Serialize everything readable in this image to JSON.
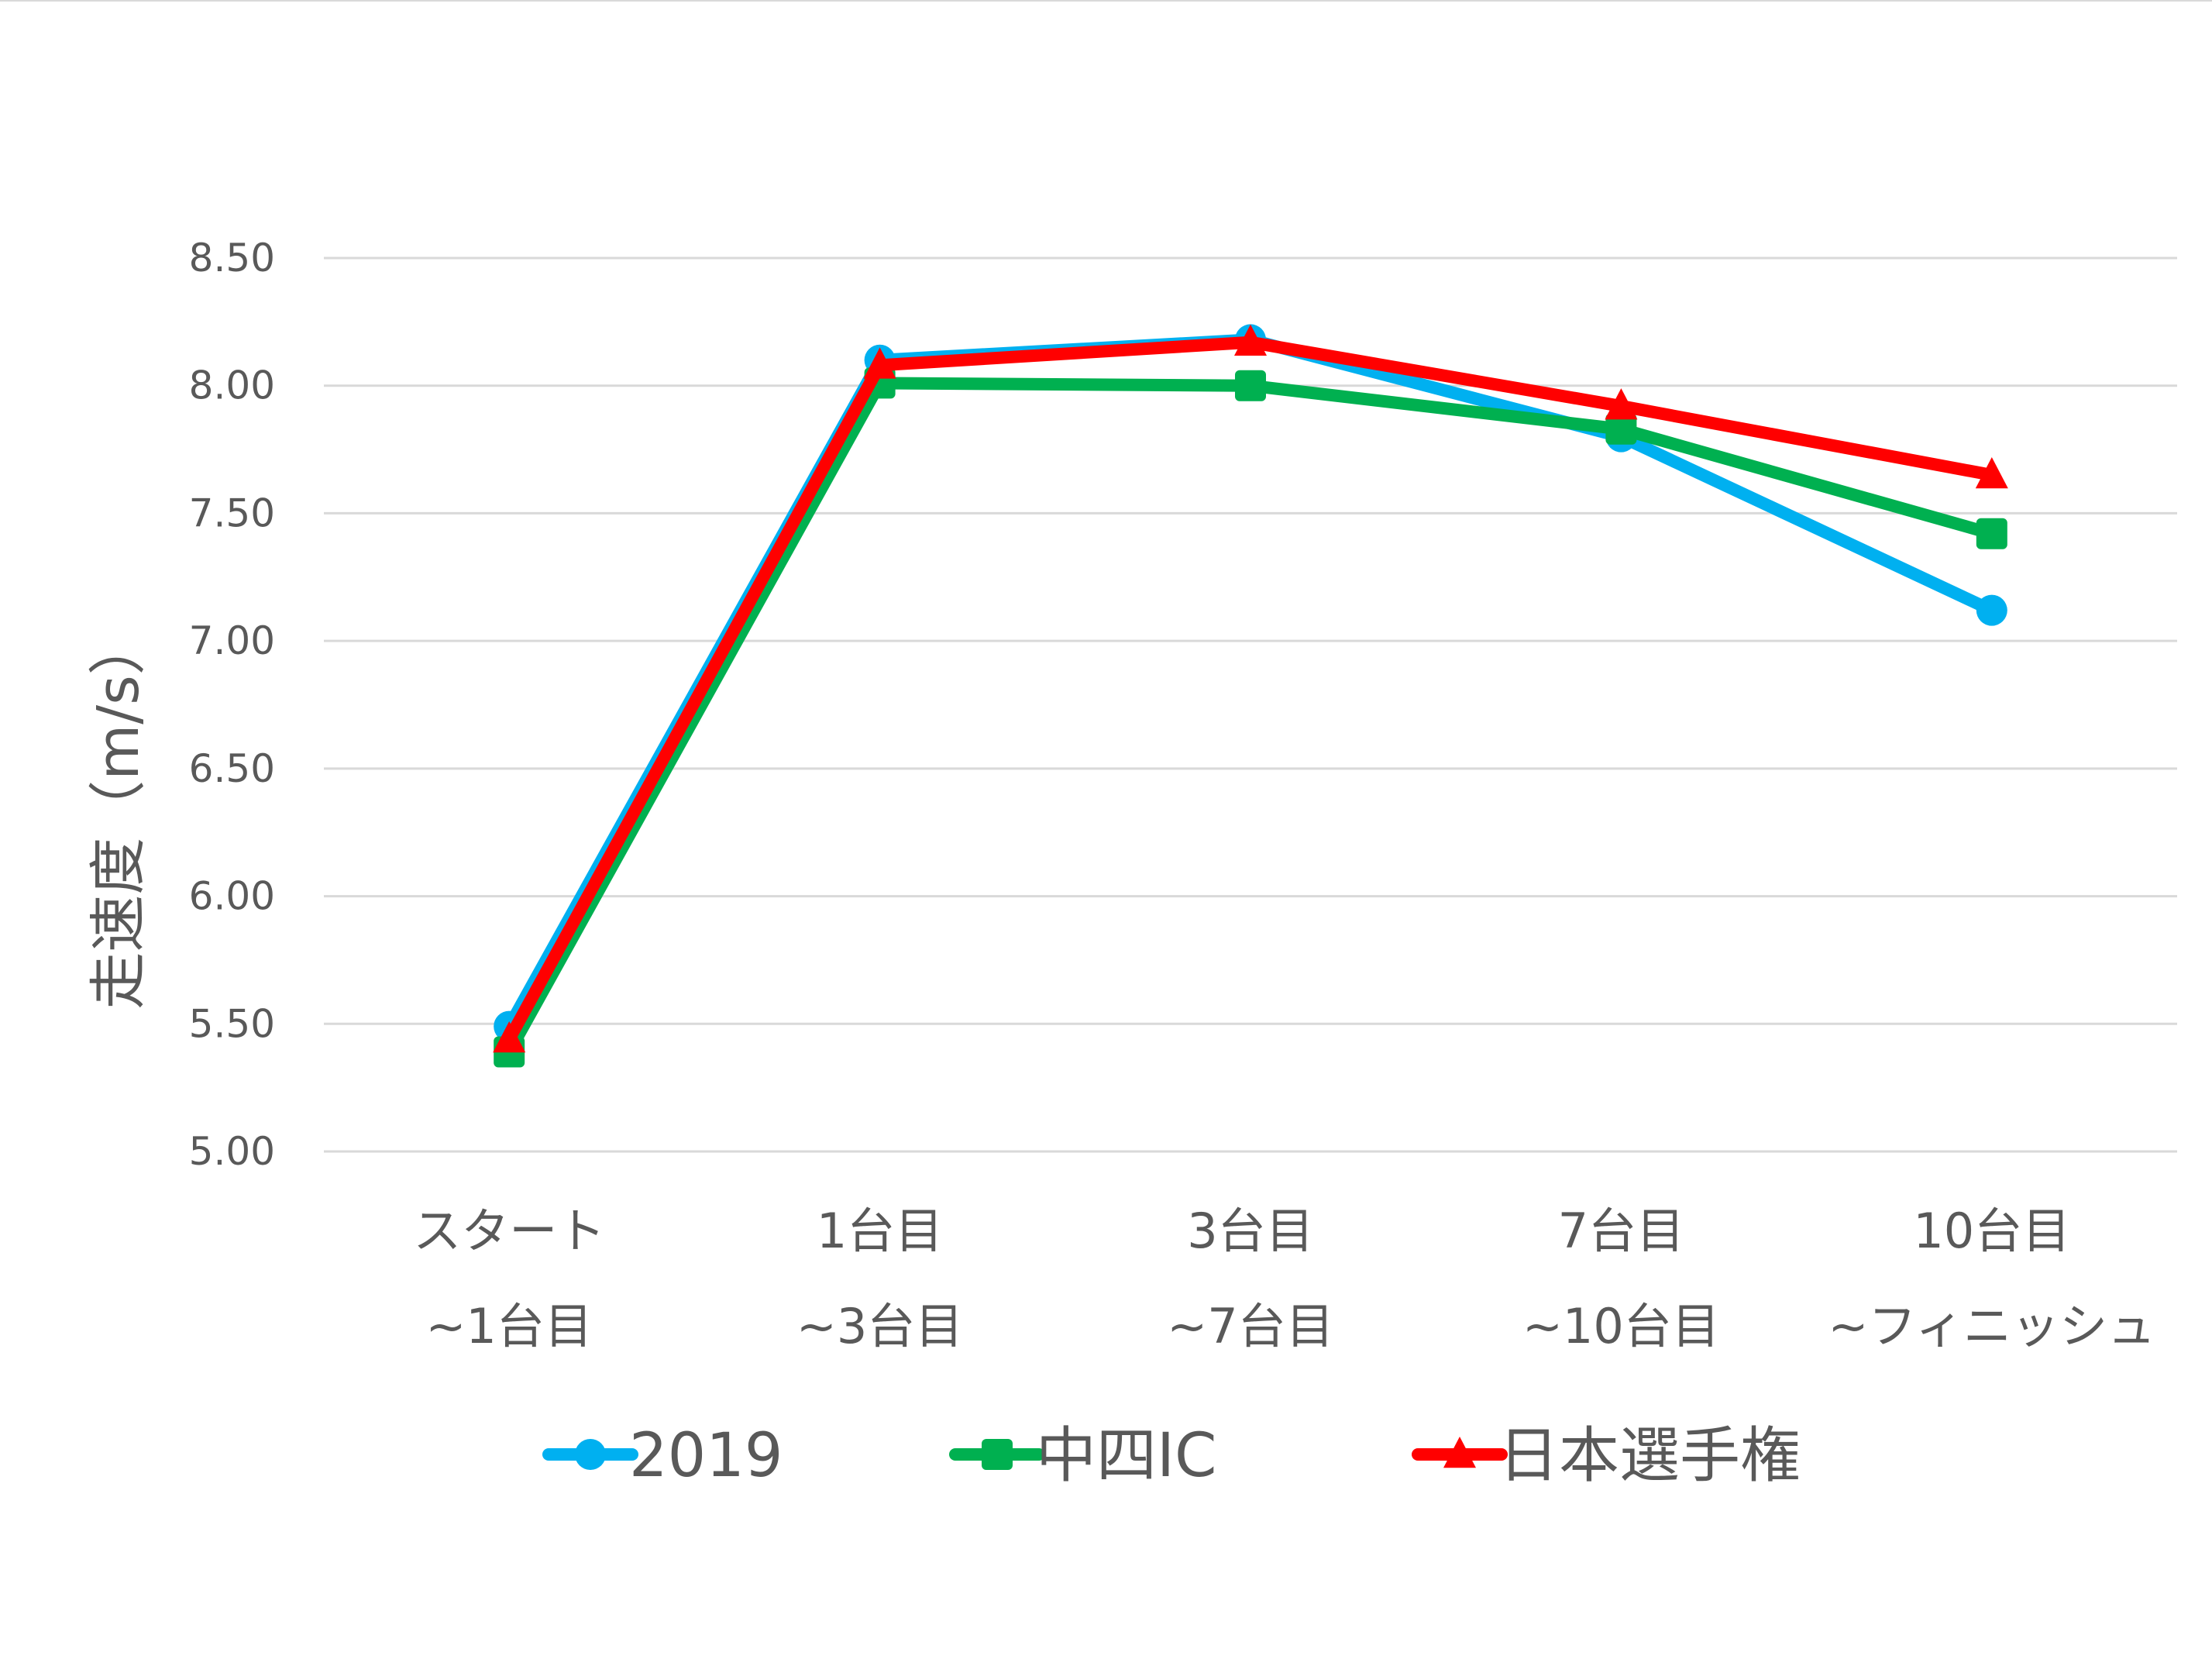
{
  "chart_data": {
    "type": "line",
    "title": "",
    "xlabel": "",
    "ylabel": "走速度（m/s）",
    "ylim": [
      5.0,
      8.5
    ],
    "yticks": [
      "8.50",
      "8.00",
      "7.50",
      "7.00",
      "6.50",
      "6.00",
      "5.50",
      "5.00"
    ],
    "ytick_values": [
      8.5,
      8.0,
      7.5,
      7.0,
      6.5,
      6.0,
      5.5,
      5.0
    ],
    "categories": [
      [
        "スタート",
        "~1台目"
      ],
      [
        "1台目",
        "~3台目"
      ],
      [
        "3台目",
        "~7台目"
      ],
      [
        "7台目",
        "~10台目"
      ],
      [
        "10台目",
        "~フィニッシュ"
      ]
    ],
    "grid": true,
    "legend": "bottom",
    "series": [
      {
        "name": "2019",
        "color": "#00B0F0",
        "marker": "circle",
        "values": [
          5.49,
          8.1,
          8.18,
          7.8,
          7.12
        ]
      },
      {
        "name": "中四IC",
        "color": "#00B050",
        "marker": "square",
        "values": [
          5.39,
          8.01,
          8.0,
          7.83,
          7.42
        ]
      },
      {
        "name": "日本選手権",
        "color": "#FF0000",
        "marker": "triangle",
        "values": [
          5.44,
          8.08,
          8.17,
          7.92,
          7.65
        ]
      }
    ]
  },
  "colors": {
    "grid": "#D9D9D9",
    "text": "#595959",
    "frame": "#D9D9D9"
  }
}
